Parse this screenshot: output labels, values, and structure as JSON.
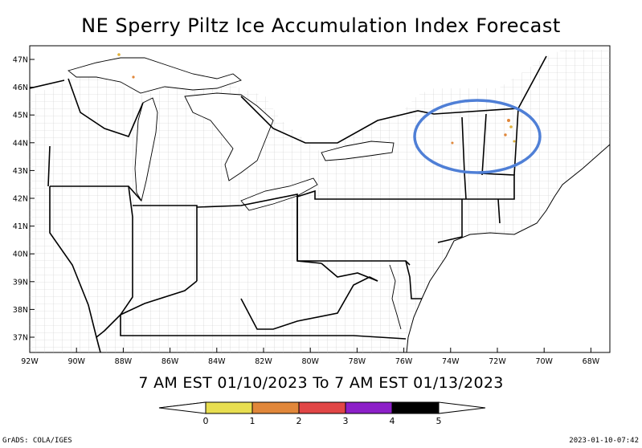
{
  "title": "NE Sperry Piltz Ice Accumulation Index Forecast",
  "valid_period": "7 AM EST 01/10/2023 To 7 AM EST 01/13/2023",
  "legend": {
    "colors": [
      "#e8de50",
      "#e1873a",
      "#e14646",
      "#8c1fc8",
      "#000000"
    ],
    "labels": [
      "0",
      "1",
      "2",
      "3",
      "4",
      "5"
    ]
  },
  "axes": {
    "lat_labels": [
      "47N",
      "46N",
      "45N",
      "44N",
      "43N",
      "42N",
      "41N",
      "40N",
      "39N",
      "38N",
      "37N"
    ],
    "lon_labels": [
      "92W",
      "90W",
      "88W",
      "86W",
      "84W",
      "82W",
      "80W",
      "78W",
      "76W",
      "74W",
      "72W",
      "70W",
      "68W"
    ]
  },
  "annotation": {
    "shape": "ellipse",
    "color": "#4f7fd6",
    "region": "Vermont / New Hampshire"
  },
  "credit": "GrADS: COLA/IGES",
  "timestamp": "2023-01-10-07:42"
}
